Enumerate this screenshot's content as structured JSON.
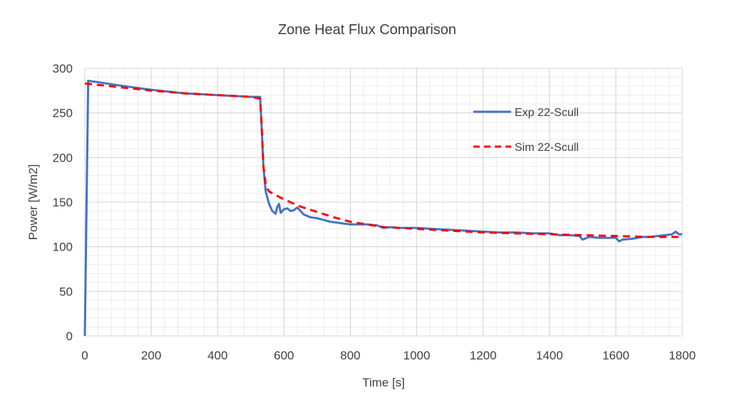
{
  "chart_data": {
    "type": "line",
    "title": "Zone Heat Flux Comparison",
    "xlabel": "Time [s]",
    "ylabel": "Power [W/m2]",
    "xlim": [
      0,
      1800
    ],
    "ylim": [
      0,
      300
    ],
    "xticks": [
      0,
      200,
      400,
      600,
      800,
      1000,
      1200,
      1400,
      1600,
      1800
    ],
    "yticks": [
      0,
      50,
      100,
      150,
      200,
      250,
      300
    ],
    "grid": true,
    "minor_grid": true,
    "legend_position": "top-right",
    "series": [
      {
        "name": "Exp 22-Scull",
        "color": "#4472C4",
        "style": "solid",
        "x": [
          0,
          10,
          50,
          100,
          200,
          300,
          400,
          500,
          528,
          532,
          538,
          545,
          555,
          565,
          575,
          580,
          585,
          590,
          600,
          610,
          620,
          630,
          640,
          650,
          660,
          680,
          700,
          720,
          740,
          760,
          780,
          800,
          820,
          850,
          880,
          900,
          920,
          950,
          1000,
          1050,
          1100,
          1150,
          1200,
          1250,
          1300,
          1350,
          1400,
          1430,
          1460,
          1490,
          1500,
          1520,
          1550,
          1600,
          1610,
          1620,
          1650,
          1680,
          1700,
          1750,
          1770,
          1780,
          1790,
          1800
        ],
        "y": [
          0,
          286,
          284,
          281,
          276,
          272,
          270,
          268,
          268,
          240,
          190,
          162,
          148,
          140,
          137,
          145,
          148,
          138,
          142,
          143,
          140,
          141,
          144,
          140,
          136,
          133,
          132,
          130,
          128,
          127,
          126,
          125,
          125,
          125,
          124,
          121,
          122,
          121,
          121,
          120,
          119,
          118,
          117,
          116,
          116,
          115,
          115,
          113,
          113,
          112,
          108,
          111,
          110,
          110,
          106,
          108,
          109,
          111,
          111,
          113,
          114,
          117,
          114,
          114
        ]
      },
      {
        "name": "Sim 22-Scull",
        "color": "#FF0000",
        "style": "dashed",
        "x": [
          0,
          50,
          100,
          200,
          300,
          400,
          500,
          528,
          532,
          538,
          545,
          550,
          555,
          565,
          580,
          600,
          650,
          700,
          750,
          800,
          850,
          900,
          950,
          1000,
          1100,
          1200,
          1300,
          1400,
          1500,
          1600,
          1700,
          1800
        ],
        "y": [
          283,
          281,
          279,
          275,
          272,
          270,
          268,
          266,
          240,
          190,
          170,
          165,
          162,
          160,
          157,
          153,
          145,
          139,
          133,
          128,
          125,
          122,
          121,
          120,
          118,
          116,
          115,
          114,
          113,
          112,
          111,
          111
        ]
      }
    ]
  }
}
